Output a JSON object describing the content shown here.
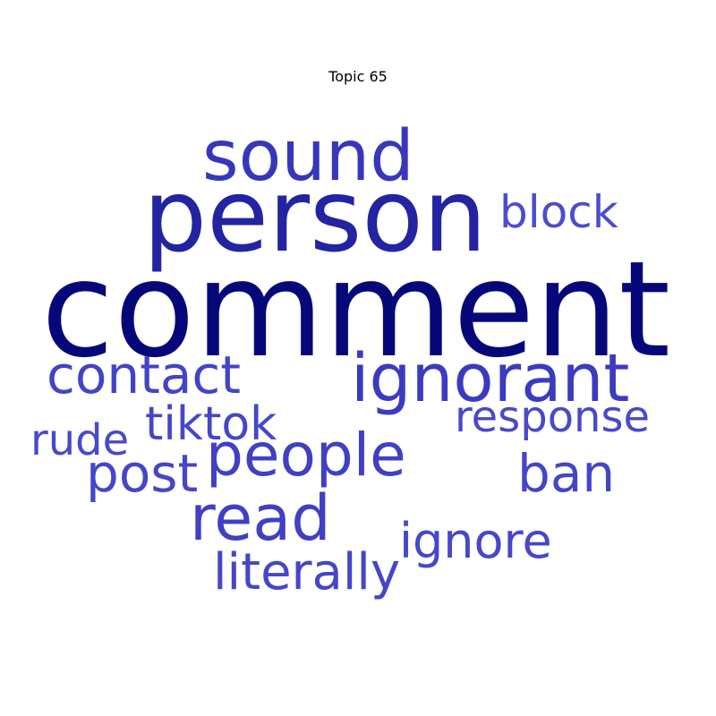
{
  "title": "Topic 65",
  "colors": {
    "darkest": "#06087a",
    "dark": "#2324a2",
    "mid": "#3637bb",
    "light": "#4343c7",
    "lighter": "#4c4dcc"
  },
  "words": [
    {
      "text": "comment",
      "color": "#06087a"
    },
    {
      "text": "person",
      "color": "#2324a2"
    },
    {
      "text": "sound",
      "color": "#3637bb"
    },
    {
      "text": "ignorant",
      "color": "#3a3bc0"
    },
    {
      "text": "block",
      "color": "#4c4dcc"
    },
    {
      "text": "contact",
      "color": "#4343c7"
    },
    {
      "text": "people",
      "color": "#4040c4"
    },
    {
      "text": "read",
      "color": "#3f40c3"
    },
    {
      "text": "response",
      "color": "#4849ca"
    },
    {
      "text": "tiktok",
      "color": "#4546c8"
    },
    {
      "text": "rude",
      "color": "#4849ca"
    },
    {
      "text": "post",
      "color": "#4546c8"
    },
    {
      "text": "ban",
      "color": "#4445c7"
    },
    {
      "text": "ignore",
      "color": "#4647c9"
    },
    {
      "text": "literally",
      "color": "#4546c8"
    }
  ]
}
